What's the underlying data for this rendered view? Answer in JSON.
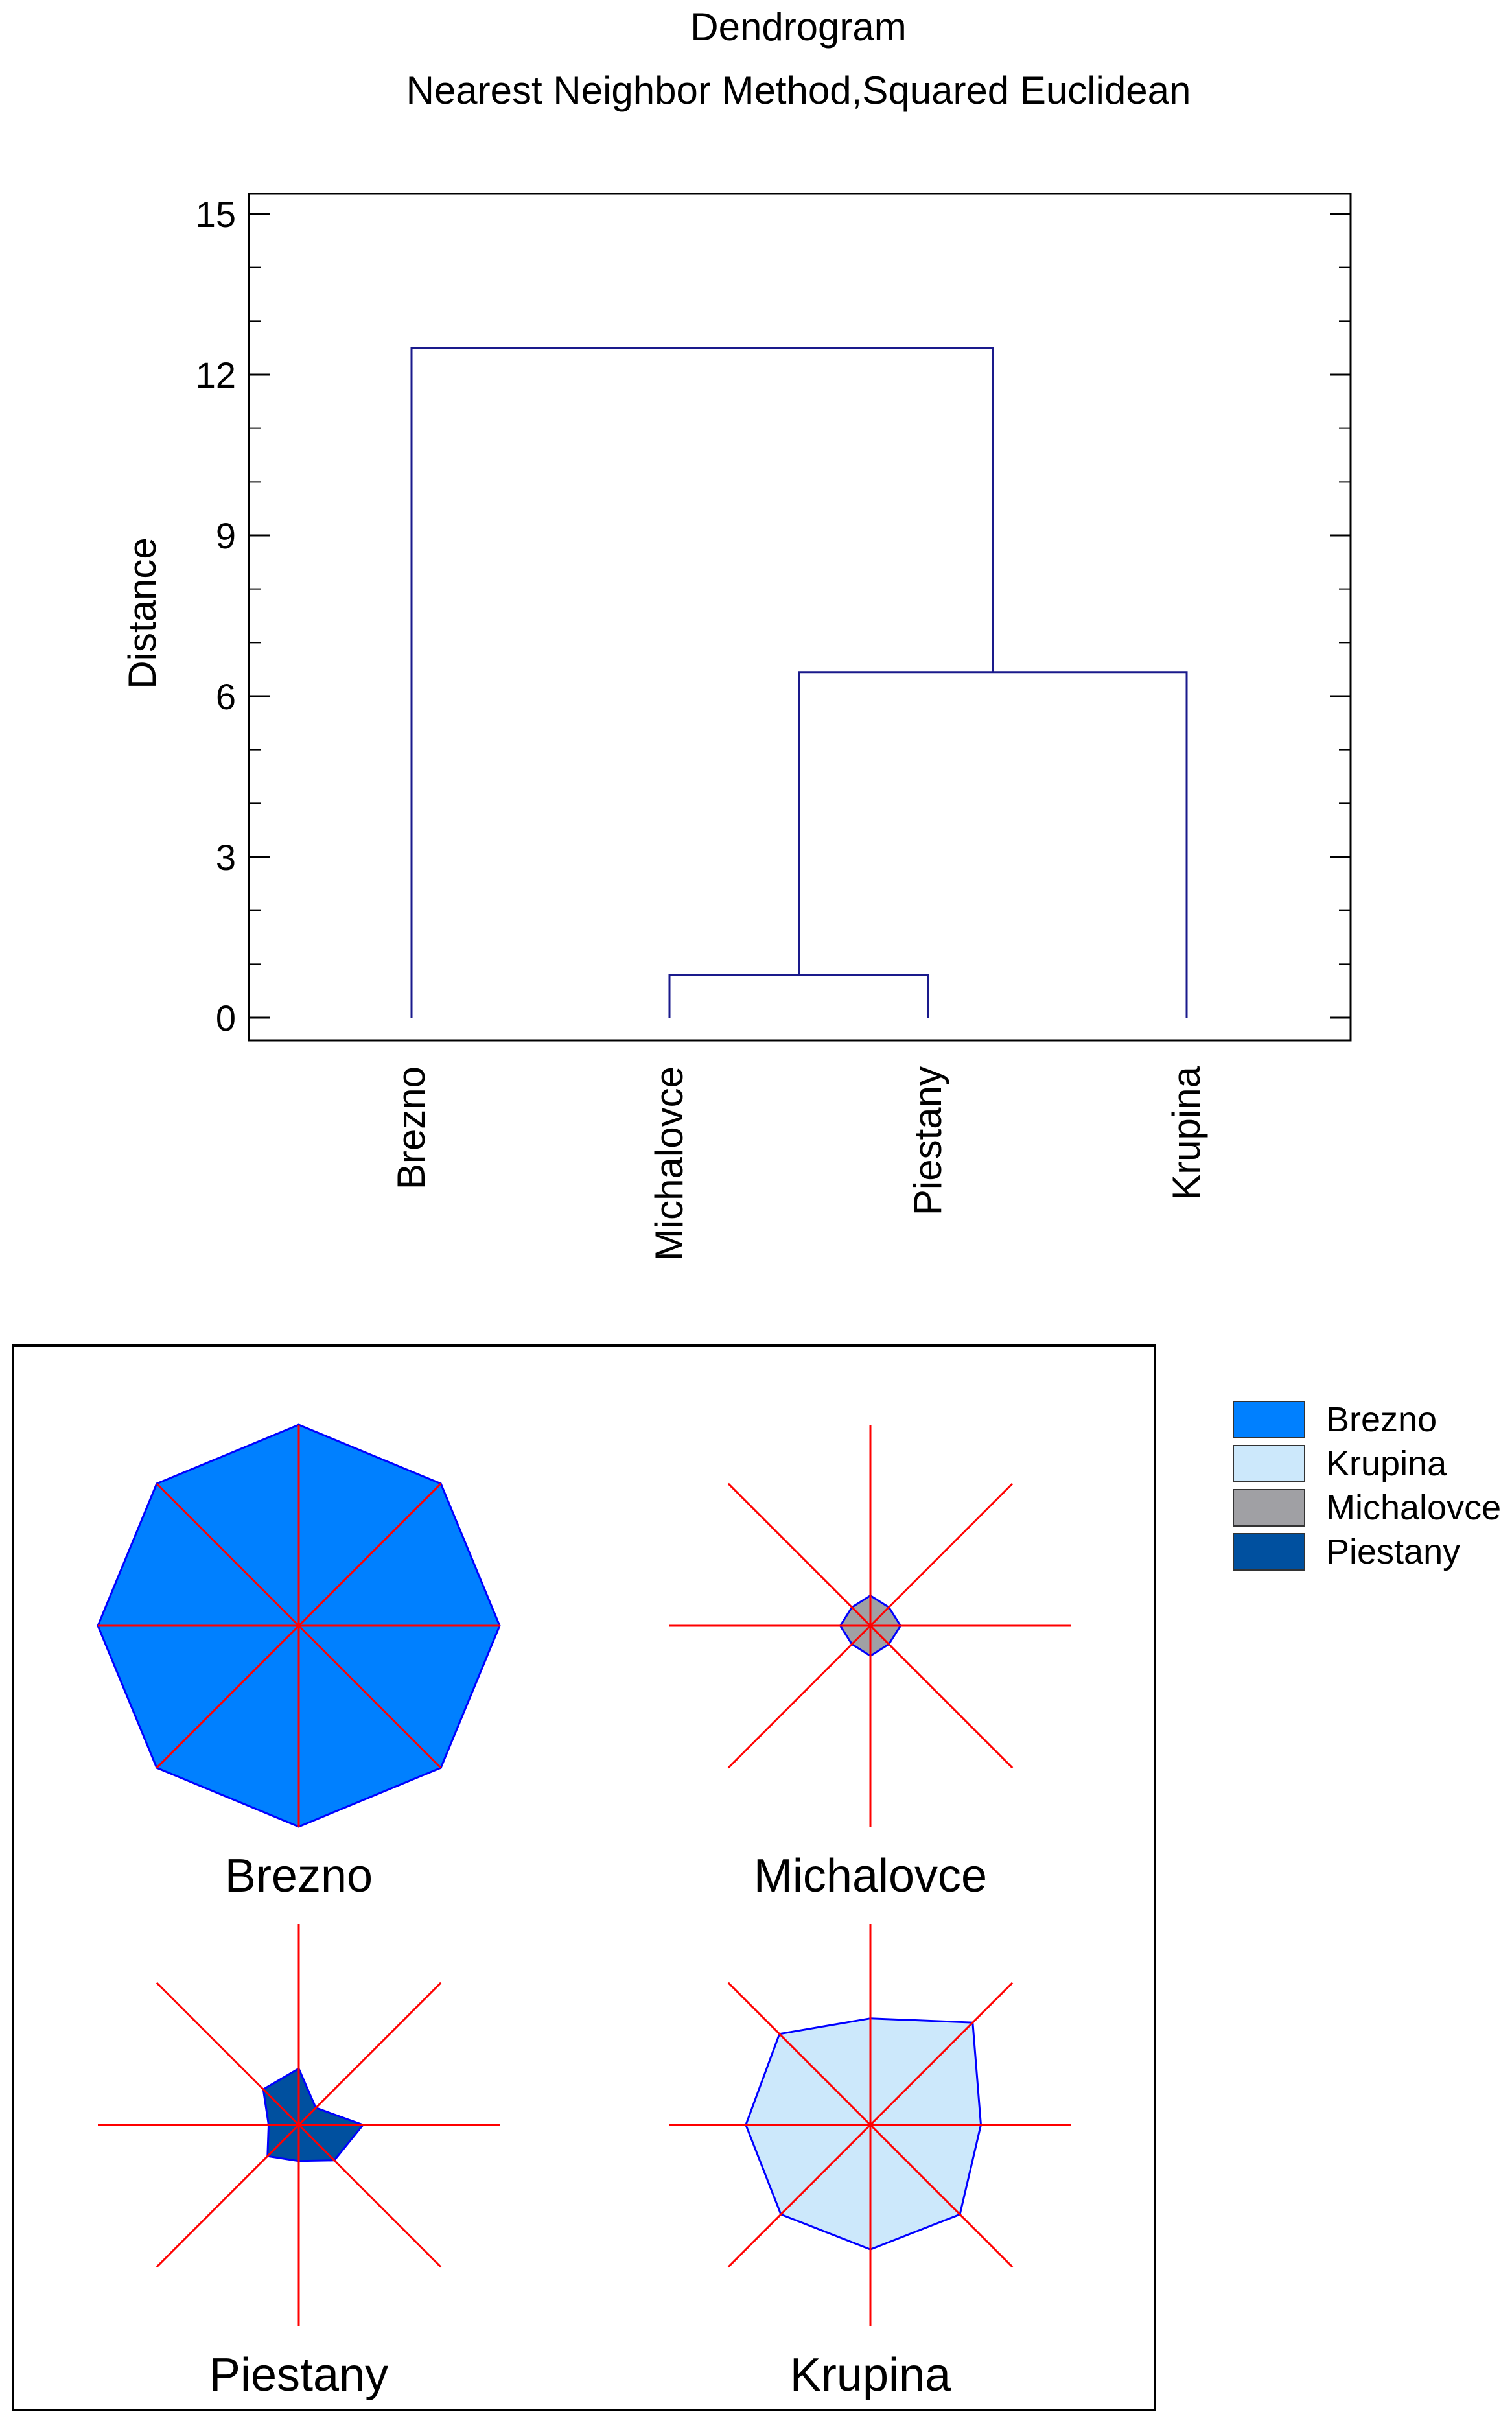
{
  "chart_data": [
    {
      "type": "dendrogram",
      "title": "Dendrogram",
      "subtitle": "Nearest Neighbor Method,Squared Euclidean",
      "ylabel": "Distance",
      "ylim": [
        0,
        15
      ],
      "yticks": [
        0,
        3,
        6,
        9,
        12,
        15
      ],
      "leaves": [
        "Brezno",
        "Michalovce",
        "Piestany",
        "Krupina"
      ],
      "line_color": "#1a1a8c",
      "merges": [
        {
          "left": 1,
          "right": 2,
          "height": 0.8
        },
        {
          "left": "c0",
          "right": 3,
          "height": 6.45
        },
        {
          "left": 0,
          "right": "c1",
          "height": 12.5
        }
      ]
    },
    {
      "type": "star",
      "ray_color": "#ff0000",
      "outline_color": "#0000ff",
      "legend": [
        {
          "name": "Brezno",
          "color": "#0080ff"
        },
        {
          "name": "Krupina",
          "color": "#cce8fb"
        },
        {
          "name": "Michalovce",
          "color": "#a0a0a4"
        },
        {
          "name": "Piestany",
          "color": "#00509f"
        }
      ],
      "stars": [
        {
          "name": "Brezno",
          "color": "#0080ff",
          "values": [
            1.0,
            1.0,
            1.0,
            1.0,
            1.0,
            1.0,
            1.0,
            1.0
          ]
        },
        {
          "name": "Michalovce",
          "color": "#a0a0a4",
          "values": [
            0.15,
            0.13,
            0.15,
            0.13,
            0.15,
            0.13,
            0.15,
            0.13
          ]
        },
        {
          "name": "Piestany",
          "color": "#00509f",
          "values": [
            0.28,
            0.12,
            0.32,
            0.25,
            0.18,
            0.22,
            0.15,
            0.25
          ]
        },
        {
          "name": "Krupina",
          "color": "#cce8fb",
          "values": [
            0.53,
            0.72,
            0.55,
            0.63,
            0.62,
            0.63,
            0.62,
            0.64
          ]
        }
      ]
    }
  ]
}
